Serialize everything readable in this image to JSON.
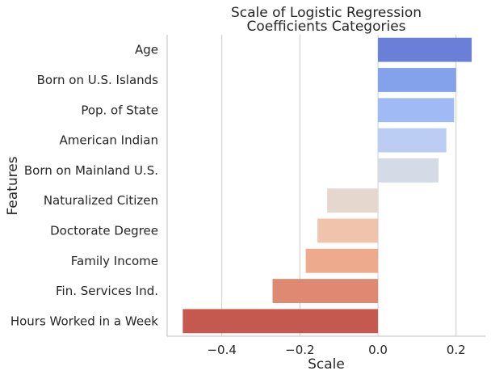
{
  "chart_data": {
    "type": "bar",
    "orientation": "horizontal",
    "title_lines": [
      "Scale of Logistic Regression",
      "Coefficients Categories"
    ],
    "xlabel": "Scale",
    "ylabel": "Features",
    "categories": [
      "Age",
      "Born on U.S. Islands",
      "Pop. of State",
      "American Indian",
      "Born on Mainland U.S.",
      "Naturalized Citizen",
      "Doctorate Degree",
      "Family Income",
      "Fin. Services Ind.",
      "Hours Worked in a Week"
    ],
    "values": [
      0.24,
      0.2,
      0.195,
      0.175,
      0.155,
      -0.13,
      -0.155,
      -0.185,
      -0.27,
      -0.5
    ],
    "colors": [
      "#6a80d8",
      "#84a1eb",
      "#a0baf6",
      "#bbcdf2",
      "#d4dbe6",
      "#e5d7ce",
      "#efc3ac",
      "#edaa8c",
      "#df8872",
      "#c6594f"
    ],
    "xlim": [
      -0.54,
      0.275
    ],
    "xticks": [
      -0.4,
      -0.2,
      0.0,
      0.2
    ],
    "xtick_labels": [
      "−0.4",
      "−0.2",
      "0.0",
      "0.2"
    ],
    "grid": "vertical"
  }
}
